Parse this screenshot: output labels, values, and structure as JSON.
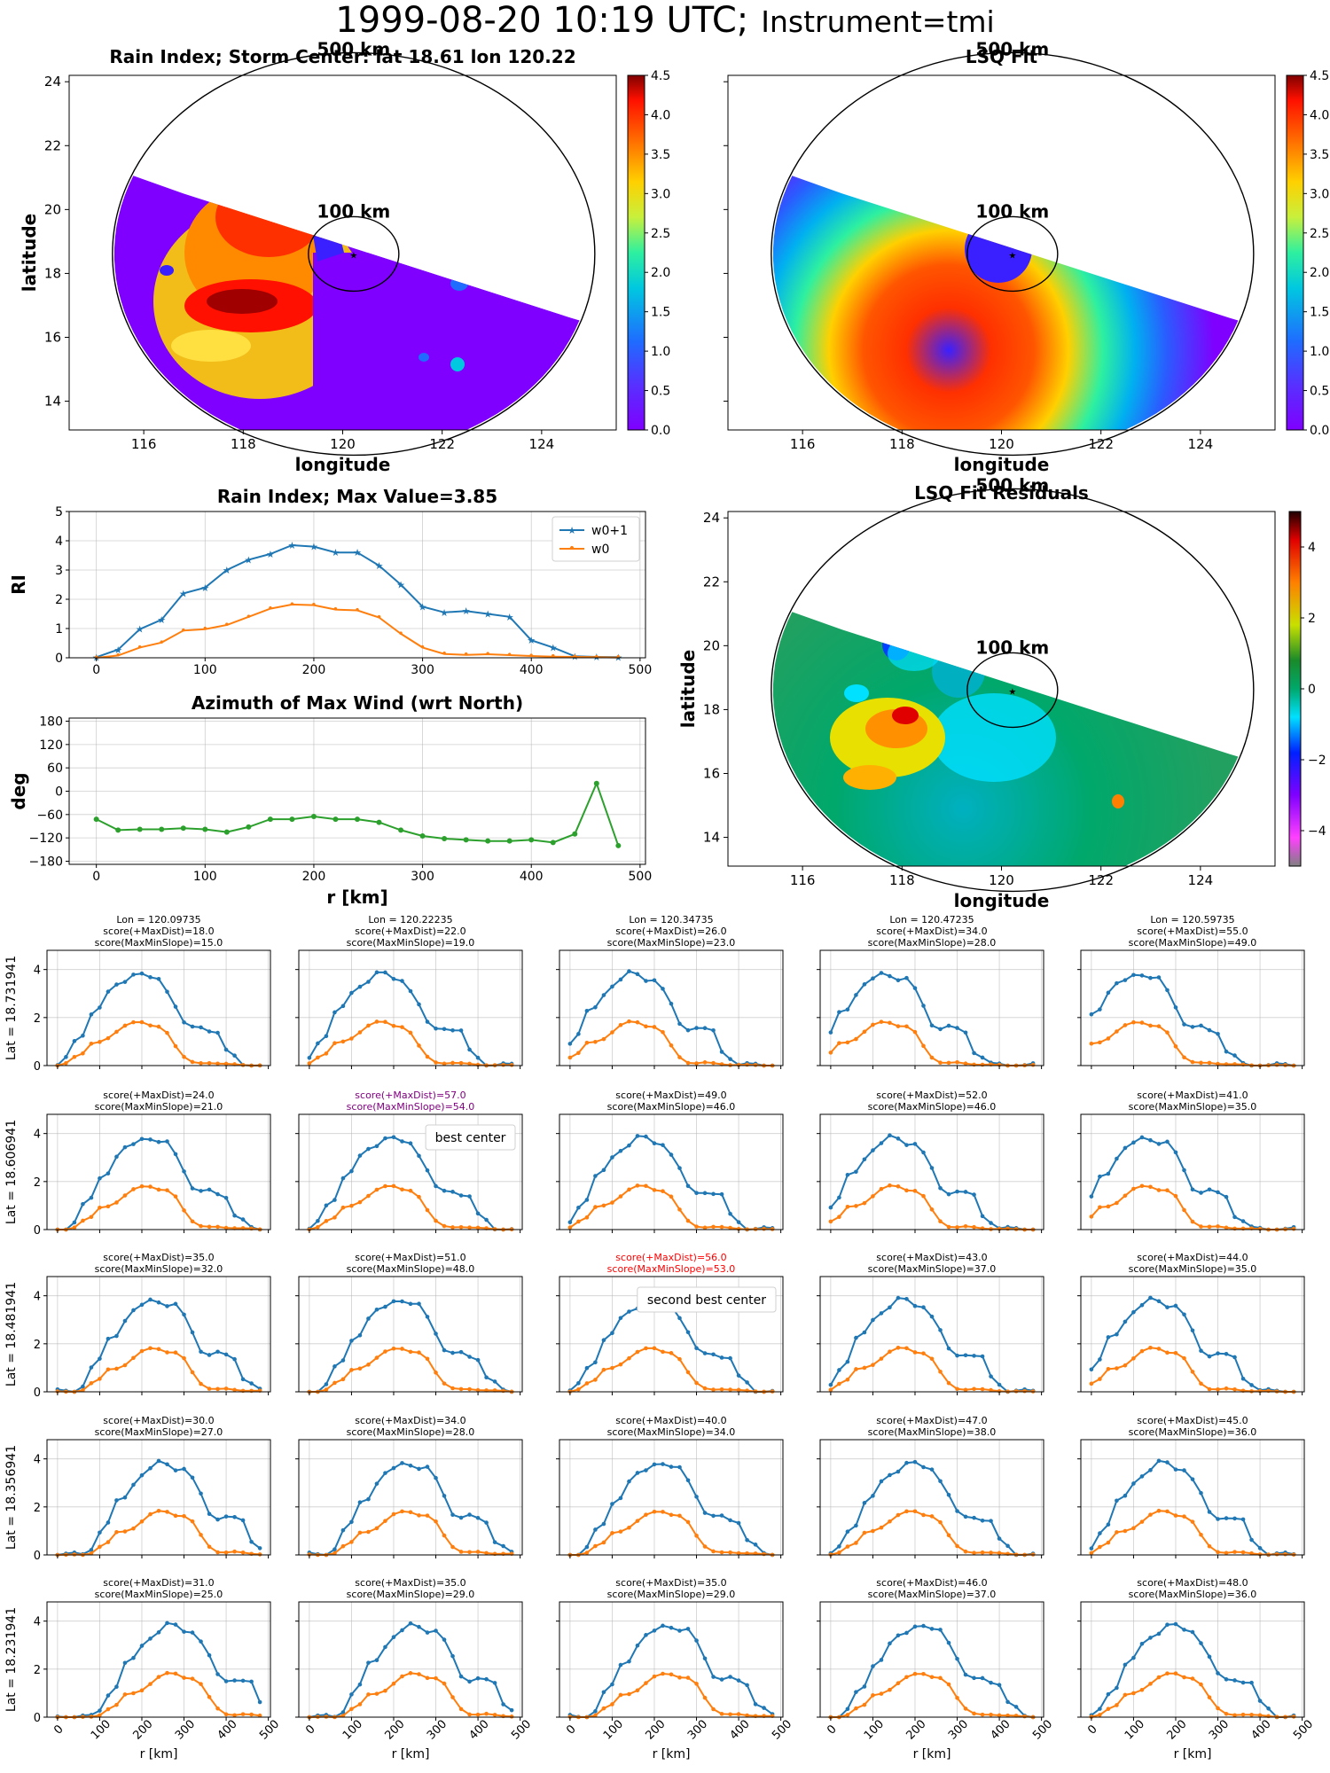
{
  "figure_title": {
    "datetime": "1999-08-20 10:19 UTC;",
    "instrument": "Instrument=tmi"
  },
  "colors": {
    "blue": "#1f77b4",
    "orange": "#ff7f0e",
    "green": "#2ca02c"
  },
  "chart_data": [
    {
      "id": "rain_index_map",
      "type": "heatmap",
      "title": "Rain Index; Storm Center: lat 18.61 lon 120.22",
      "xlabel": "longitude",
      "ylabel": "latitude",
      "x_ticks": [
        "116",
        "118",
        "120",
        "122",
        "124"
      ],
      "y_ticks": [
        "14",
        "16",
        "18",
        "20",
        "22",
        "24"
      ],
      "xlim": [
        114.5,
        125.5
      ],
      "ylim": [
        13.1,
        24.2
      ],
      "colorbar": {
        "range": [
          0,
          4.5
        ],
        "ticks": [
          "0.0",
          "0.5",
          "1.0",
          "1.5",
          "2.0",
          "2.5",
          "3.0",
          "3.5",
          "4.0",
          "4.5"
        ],
        "colormap": "rainbow"
      },
      "circle_labels": [
        "500 km",
        "100 km"
      ],
      "center": {
        "lon": 120.22,
        "lat": 18.61
      }
    },
    {
      "id": "lsq_fit_map",
      "type": "heatmap",
      "title": "LSQ Fit",
      "xlabel": "longitude",
      "x_ticks": [
        "116",
        "118",
        "120",
        "122",
        "124"
      ],
      "xlim": [
        114.5,
        125.5
      ],
      "ylim": [
        13.1,
        24.2
      ],
      "colorbar": {
        "range": [
          0,
          4.5
        ],
        "ticks": [
          "0.0",
          "0.5",
          "1.0",
          "1.5",
          "2.0",
          "2.5",
          "3.0",
          "3.5",
          "4.0",
          "4.5"
        ],
        "colormap": "rainbow"
      },
      "circle_labels": [
        "500 km",
        "100 km"
      ]
    },
    {
      "id": "rain_index_profile",
      "type": "line",
      "title": "Rain Index; Max Value=3.85",
      "ylabel": "RI",
      "x_ticks": [
        "0",
        "100",
        "200",
        "300",
        "400",
        "500"
      ],
      "y_ticks": [
        "0",
        "1",
        "2",
        "3",
        "4",
        "5"
      ],
      "xlim": [
        -25,
        505
      ],
      "ylim": [
        0,
        5
      ],
      "x": [
        0,
        20,
        40,
        60,
        80,
        100,
        120,
        140,
        160,
        180,
        200,
        220,
        240,
        260,
        280,
        300,
        320,
        340,
        360,
        380,
        400,
        420,
        440,
        460,
        480
      ],
      "series": [
        {
          "name": "w0+1",
          "values": [
            0.02,
            0.28,
            0.98,
            1.3,
            2.2,
            2.4,
            3.0,
            3.35,
            3.55,
            3.85,
            3.8,
            3.6,
            3.6,
            3.15,
            2.5,
            1.75,
            1.55,
            1.6,
            1.5,
            1.4,
            0.6,
            0.35,
            0.05,
            0.03,
            0.02
          ]
        },
        {
          "name": "w0",
          "values": [
            0.0,
            0.08,
            0.35,
            0.52,
            0.93,
            0.98,
            1.12,
            1.4,
            1.68,
            1.82,
            1.8,
            1.65,
            1.62,
            1.38,
            0.82,
            0.35,
            0.13,
            0.1,
            0.12,
            0.09,
            0.06,
            0.04,
            0.03,
            0.02,
            0.01
          ]
        }
      ],
      "legend": "top-right",
      "grid": true
    },
    {
      "id": "azimuth_max_wind",
      "type": "line",
      "title": "Azimuth of Max Wind (wrt North)",
      "xlabel": "r [km]",
      "ylabel": "deg",
      "x_ticks": [
        "0",
        "100",
        "200",
        "300",
        "400",
        "500"
      ],
      "y_ticks": [
        "−180",
        "−120",
        "−60",
        "0",
        "60",
        "120",
        "180"
      ],
      "xlim": [
        -25,
        505
      ],
      "ylim": [
        -188,
        188
      ],
      "x": [
        0,
        20,
        40,
        60,
        80,
        100,
        120,
        140,
        160,
        180,
        200,
        220,
        240,
        260,
        280,
        300,
        320,
        340,
        360,
        380,
        400,
        420,
        440,
        460,
        480
      ],
      "series": [
        {
          "values": [
            -72,
            -100,
            -98,
            -98,
            -95,
            -98,
            -105,
            -92,
            -72,
            -72,
            -65,
            -72,
            -72,
            -80,
            -100,
            -115,
            -122,
            -125,
            -128,
            -128,
            -125,
            -132,
            -110,
            20,
            -140
          ]
        }
      ],
      "grid": true
    },
    {
      "id": "lsq_fit_residuals",
      "type": "heatmap",
      "title": "LSQ Fit Residuals",
      "xlabel": "longitude",
      "ylabel": "latitude",
      "x_ticks": [
        "116",
        "118",
        "120",
        "122",
        "124"
      ],
      "y_ticks": [
        "14",
        "16",
        "18",
        "20",
        "22",
        "24"
      ],
      "xlim": [
        114.5,
        125.5
      ],
      "ylim": [
        13.1,
        24.2
      ],
      "colorbar": {
        "range": [
          -5,
          5
        ],
        "ticks": [
          "−4",
          "−2",
          "0",
          "2",
          "4"
        ],
        "colormap": "diverging"
      },
      "circle_labels": [
        "500 km",
        "100 km"
      ]
    },
    {
      "id": "center_search_grid",
      "type": "line",
      "xlabel": "r [km]",
      "x_ticks": [
        "0",
        "100",
        "200",
        "300",
        "400",
        "500"
      ],
      "y_ticks": [
        "0",
        "2",
        "4"
      ],
      "xlim": [
        -25,
        505
      ],
      "ylim": [
        0,
        4.8
      ],
      "col_lons": [
        "Lon = 120.09735",
        "Lon = 120.22235",
        "Lon = 120.34735",
        "Lon = 120.47235",
        "Lon = 120.59735"
      ],
      "row_lats": [
        "Lat = 18.731941",
        "Lat = 18.606941",
        "Lat = 18.481941",
        "Lat = 18.356941",
        "Lat = 18.231941"
      ],
      "scores": [
        [
          [
            "score(+MaxDist)=18.0",
            "score(MaxMinSlope)=15.0"
          ],
          [
            "score(+MaxDist)=22.0",
            "score(MaxMinSlope)=19.0"
          ],
          [
            "score(+MaxDist)=26.0",
            "score(MaxMinSlope)=23.0"
          ],
          [
            "score(+MaxDist)=34.0",
            "score(MaxMinSlope)=28.0"
          ],
          [
            "score(+MaxDist)=55.0",
            "score(MaxMinSlope)=49.0"
          ]
        ],
        [
          [
            "score(+MaxDist)=24.0",
            "score(MaxMinSlope)=21.0"
          ],
          [
            "score(+MaxDist)=57.0",
            "score(MaxMinSlope)=54.0"
          ],
          [
            "score(+MaxDist)=49.0",
            "score(MaxMinSlope)=46.0"
          ],
          [
            "score(+MaxDist)=52.0",
            "score(MaxMinSlope)=46.0"
          ],
          [
            "score(+MaxDist)=41.0",
            "score(MaxMinSlope)=35.0"
          ]
        ],
        [
          [
            "score(+MaxDist)=35.0",
            "score(MaxMinSlope)=32.0"
          ],
          [
            "score(+MaxDist)=51.0",
            "score(MaxMinSlope)=48.0"
          ],
          [
            "score(+MaxDist)=56.0",
            "score(MaxMinSlope)=53.0"
          ],
          [
            "score(+MaxDist)=43.0",
            "score(MaxMinSlope)=37.0"
          ],
          [
            "score(+MaxDist)=44.0",
            "score(MaxMinSlope)=35.0"
          ]
        ],
        [
          [
            "score(+MaxDist)=30.0",
            "score(MaxMinSlope)=27.0"
          ],
          [
            "score(+MaxDist)=34.0",
            "score(MaxMinSlope)=28.0"
          ],
          [
            "score(+MaxDist)=40.0",
            "score(MaxMinSlope)=34.0"
          ],
          [
            "score(+MaxDist)=47.0",
            "score(MaxMinSlope)=38.0"
          ],
          [
            "score(+MaxDist)=45.0",
            "score(MaxMinSlope)=36.0"
          ]
        ],
        [
          [
            "score(+MaxDist)=31.0",
            "score(MaxMinSlope)=25.0"
          ],
          [
            "score(+MaxDist)=35.0",
            "score(MaxMinSlope)=29.0"
          ],
          [
            "score(+MaxDist)=35.0",
            "score(MaxMinSlope)=29.0"
          ],
          [
            "score(+MaxDist)=46.0",
            "score(MaxMinSlope)=37.0"
          ],
          [
            "score(+MaxDist)=48.0",
            "score(MaxMinSlope)=36.0"
          ]
        ]
      ],
      "annotations": [
        {
          "row": 1,
          "col": 1,
          "text": "best center",
          "color": "#800080"
        },
        {
          "row": 2,
          "col": 2,
          "text": "second best center",
          "color": "#ff0000"
        }
      ]
    }
  ]
}
